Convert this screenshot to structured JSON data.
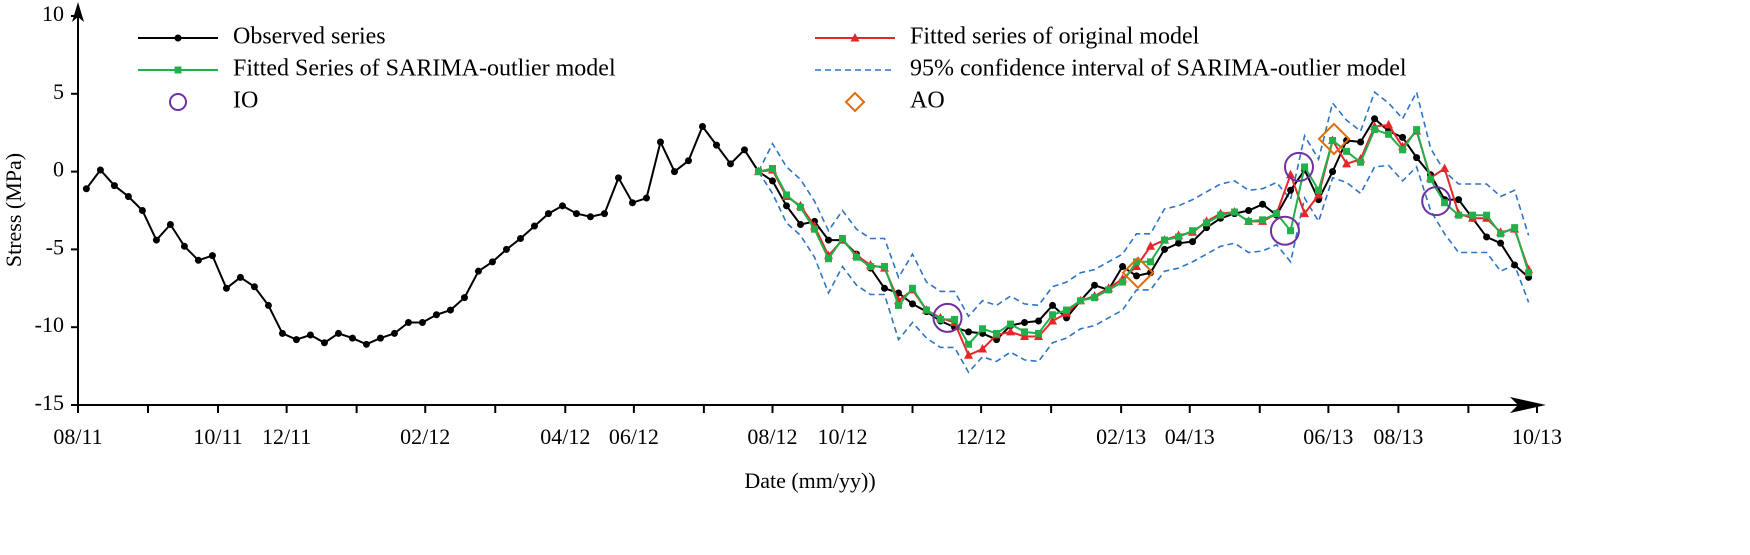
{
  "chart_data": {
    "type": "line",
    "x_label": "Date (mm/yy))",
    "y_label": "Stress (MPa)",
    "xlim": [
      0.4,
      104.6
    ],
    "xticks": [
      {
        "value": 0.4,
        "label": "08/11"
      },
      {
        "value": 5.4,
        "label": null
      },
      {
        "value": 10.4,
        "label": "10/11"
      },
      {
        "value": 15.3,
        "label": "12/11"
      },
      {
        "value": 20.3,
        "label": null
      },
      {
        "value": 25.2,
        "label": "02/12"
      },
      {
        "value": 30.2,
        "label": null
      },
      {
        "value": 35.2,
        "label": "04/12"
      },
      {
        "value": 40.1,
        "label": "06/12"
      },
      {
        "value": 45.1,
        "label": null
      },
      {
        "value": 50.0,
        "label": "08/12"
      },
      {
        "value": 55.0,
        "label": "10/12"
      },
      {
        "value": 60.0,
        "label": null
      },
      {
        "value": 64.9,
        "label": "12/12"
      },
      {
        "value": 69.9,
        "label": null
      },
      {
        "value": 74.9,
        "label": "02/13"
      },
      {
        "value": 79.8,
        "label": "04/13"
      },
      {
        "value": 84.8,
        "label": null
      },
      {
        "value": 89.7,
        "label": "06/13"
      },
      {
        "value": 94.7,
        "label": "08/13"
      },
      {
        "value": 99.7,
        "label": null
      },
      {
        "value": 104.6,
        "label": "10/13"
      }
    ],
    "ylim": [
      -15,
      10
    ],
    "yticks": [
      10,
      5,
      0,
      -5,
      -10,
      -15
    ],
    "legend": "top",
    "x": [
      1,
      2,
      3,
      4,
      5,
      6,
      7,
      8,
      9,
      10,
      11,
      12,
      13,
      14,
      15,
      16,
      17,
      18,
      19,
      20,
      21,
      22,
      23,
      24,
      25,
      26,
      27,
      28,
      29,
      30,
      31,
      32,
      33,
      34,
      35,
      36,
      37,
      38,
      39,
      40,
      41,
      42,
      43,
      44,
      45,
      46,
      47,
      48,
      49,
      50,
      51,
      52,
      53,
      54,
      55,
      56,
      57,
      58,
      59,
      60,
      61,
      62,
      63,
      64,
      65,
      66,
      67,
      68,
      69,
      70,
      71,
      72,
      73,
      74,
      75,
      76,
      77,
      78,
      79,
      80,
      81,
      82,
      83,
      84,
      85,
      86,
      87,
      88,
      89,
      90,
      91,
      92,
      93,
      94,
      95,
      96,
      97,
      98,
      99,
      100,
      101,
      102,
      103,
      104
    ],
    "series": [
      {
        "name": "Observed series",
        "color": "#000000",
        "marker": "circle",
        "dash": false,
        "values": [
          -1.1,
          0.1,
          -0.9,
          -1.6,
          -2.5,
          -4.4,
          -3.4,
          -4.8,
          -5.7,
          -5.4,
          -7.5,
          -6.8,
          -7.4,
          -8.6,
          -10.4,
          -10.8,
          -10.5,
          -11.0,
          -10.4,
          -10.7,
          -11.1,
          -10.7,
          -10.4,
          -9.7,
          -9.7,
          -9.2,
          -8.9,
          -8.1,
          -6.4,
          -5.8,
          -5.0,
          -4.3,
          -3.5,
          -2.7,
          -2.2,
          -2.7,
          -2.9,
          -2.7,
          -0.4,
          -2.0,
          -1.7,
          1.9,
          0.0,
          0.7,
          2.9,
          1.7,
          0.5,
          1.4,
          0.0,
          -0.6,
          -2.2,
          -3.4,
          -3.2,
          -4.4,
          -4.4,
          -5.3,
          -6.2,
          -7.5,
          -7.8,
          -8.5,
          -9.0,
          -9.6,
          -10.0,
          -10.3,
          -10.4,
          -10.8,
          -9.9,
          -9.7,
          -9.6,
          -8.6,
          -9.4,
          -8.3,
          -7.3,
          -7.6,
          -6.1,
          -6.7,
          -6.5,
          -5.0,
          -4.6,
          -4.5,
          -3.6,
          -3.0,
          -2.7,
          -2.5,
          -2.1,
          -2.8,
          -1.2,
          0.1,
          -1.8,
          0.0,
          2.0,
          1.9,
          3.4,
          2.6,
          2.2,
          0.9,
          -0.2,
          -1.8,
          -1.8,
          -3.0,
          -4.2,
          -4.6,
          -6.0,
          -6.8
        ]
      },
      {
        "name": "Fitted series of original model",
        "color": "#e8262a",
        "marker": "triangle",
        "dash": false,
        "values": [
          null,
          null,
          null,
          null,
          null,
          null,
          null,
          null,
          null,
          null,
          null,
          null,
          null,
          null,
          null,
          null,
          null,
          null,
          null,
          null,
          null,
          null,
          null,
          null,
          null,
          null,
          null,
          null,
          null,
          null,
          null,
          null,
          null,
          null,
          null,
          null,
          null,
          null,
          null,
          null,
          null,
          null,
          null,
          null,
          null,
          null,
          null,
          null,
          0.0,
          0.1,
          -1.6,
          -2.2,
          -3.5,
          -5.4,
          -4.4,
          -5.4,
          -6.0,
          -6.2,
          -8.3,
          -7.6,
          -8.9,
          -9.4,
          -9.7,
          -11.8,
          -11.4,
          -10.5,
          -10.3,
          -10.6,
          -10.6,
          -9.6,
          -9.1,
          -8.3,
          -8.0,
          -7.5,
          -6.9,
          -6.1,
          -4.8,
          -4.4,
          -4.1,
          -3.9,
          -3.2,
          -2.7,
          -2.6,
          -3.2,
          -3.2,
          -2.7,
          -0.2,
          -2.7,
          -1.5,
          2.0,
          0.5,
          0.8,
          2.9,
          3.0,
          1.6,
          2.6,
          -0.4,
          0.2,
          -2.7,
          -3.0,
          -3.0,
          -3.9,
          -3.7,
          -6.3
        ]
      },
      {
        "name": "Fitted Series of SARIMA-outlier model",
        "color": "#22b04b",
        "marker": "square",
        "dash": false,
        "values": [
          null,
          null,
          null,
          null,
          null,
          null,
          null,
          null,
          null,
          null,
          null,
          null,
          null,
          null,
          null,
          null,
          null,
          null,
          null,
          null,
          null,
          null,
          null,
          null,
          null,
          null,
          null,
          null,
          null,
          null,
          null,
          null,
          null,
          null,
          null,
          null,
          null,
          null,
          null,
          null,
          null,
          null,
          null,
          null,
          null,
          null,
          null,
          null,
          0.0,
          0.2,
          -1.5,
          -2.3,
          -3.7,
          -5.6,
          -4.3,
          -5.5,
          -6.1,
          -6.1,
          -8.6,
          -7.5,
          -8.9,
          -9.5,
          -9.5,
          -11.1,
          -10.1,
          -10.4,
          -9.8,
          -10.3,
          -10.4,
          -9.2,
          -8.9,
          -8.3,
          -8.1,
          -7.6,
          -7.1,
          -5.8,
          -5.8,
          -4.4,
          -4.2,
          -3.8,
          -3.3,
          -2.8,
          -2.6,
          -3.2,
          -3.1,
          -2.7,
          -3.8,
          0.3,
          -1.2,
          2.0,
          1.3,
          0.6,
          2.7,
          2.4,
          1.4,
          2.7,
          -0.5,
          -2.0,
          -2.8,
          -2.8,
          -2.8,
          -4.0,
          -3.6,
          -6.5
        ]
      },
      {
        "name": "95% confidence interval of SARIMA-outlier model",
        "color": "#2e75c4",
        "marker": "none",
        "dash": true,
        "values": [
          null,
          null,
          null,
          null,
          null,
          null,
          null,
          null,
          null,
          null,
          null,
          null,
          null,
          null,
          null,
          null,
          null,
          null,
          null,
          null,
          null,
          null,
          null,
          null,
          null,
          null,
          null,
          null,
          null,
          null,
          null,
          null,
          null,
          null,
          null,
          null,
          null,
          null,
          null,
          null,
          null,
          null,
          null,
          null,
          null,
          null,
          null,
          null,
          0.0,
          1.8,
          0.3,
          -0.5,
          -1.9,
          -3.8,
          -2.5,
          -3.7,
          -4.3,
          -4.3,
          -6.8,
          -5.3,
          -7.1,
          -7.7,
          -7.7,
          -9.3,
          -8.3,
          -8.6,
          -8.0,
          -8.5,
          -8.6,
          -7.4,
          -7.1,
          -6.5,
          -6.3,
          -5.8,
          -5.3,
          -4.0,
          -4.0,
          -2.4,
          -2.2,
          -1.8,
          -1.3,
          -0.8,
          -0.6,
          -1.2,
          -1.1,
          -0.7,
          -1.8,
          2.3,
          0.8,
          4.4,
          3.3,
          2.6,
          5.1,
          4.4,
          3.4,
          5.1,
          1.5,
          0.0,
          -0.8,
          -0.8,
          -0.8,
          -1.6,
          -1.2,
          -4.1
        ],
        "lower": [
          null,
          null,
          null,
          null,
          null,
          null,
          null,
          null,
          null,
          null,
          null,
          null,
          null,
          null,
          null,
          null,
          null,
          null,
          null,
          null,
          null,
          null,
          null,
          null,
          null,
          null,
          null,
          null,
          null,
          null,
          null,
          null,
          null,
          null,
          null,
          null,
          null,
          null,
          null,
          null,
          null,
          null,
          null,
          null,
          null,
          null,
          null,
          null,
          0.0,
          -1.4,
          -3.3,
          -4.1,
          -5.5,
          -7.8,
          -6.1,
          -7.3,
          -7.9,
          -7.9,
          -10.8,
          -9.7,
          -10.7,
          -11.3,
          -11.3,
          -12.9,
          -11.9,
          -12.2,
          -11.6,
          -12.1,
          -12.2,
          -11.0,
          -10.7,
          -10.1,
          -9.9,
          -9.4,
          -8.9,
          -7.6,
          -7.6,
          -6.4,
          -6.2,
          -5.8,
          -5.3,
          -4.8,
          -4.6,
          -5.2,
          -5.1,
          -4.7,
          -5.8,
          -1.7,
          -3.2,
          -0.4,
          -0.7,
          -1.4,
          0.3,
          0.4,
          -0.6,
          0.3,
          -2.5,
          -4.0,
          -5.2,
          -5.2,
          -5.2,
          -6.4,
          -6.0,
          -8.4
        ]
      },
      {
        "name": "IO",
        "type": "scatter",
        "color": "#7030a0",
        "marker": "open-circle",
        "dash": false,
        "x": [
          62.5,
          86.6,
          87.6,
          97.4
        ],
        "values": [
          -9.4,
          -3.8,
          0.3,
          -1.9
        ]
      },
      {
        "name": "AO",
        "type": "scatter",
        "color": "#e36c0a",
        "marker": "open-diamond",
        "dash": false,
        "x": [
          76.1,
          90.1
        ],
        "values": [
          -6.5,
          2.1
        ]
      }
    ]
  }
}
